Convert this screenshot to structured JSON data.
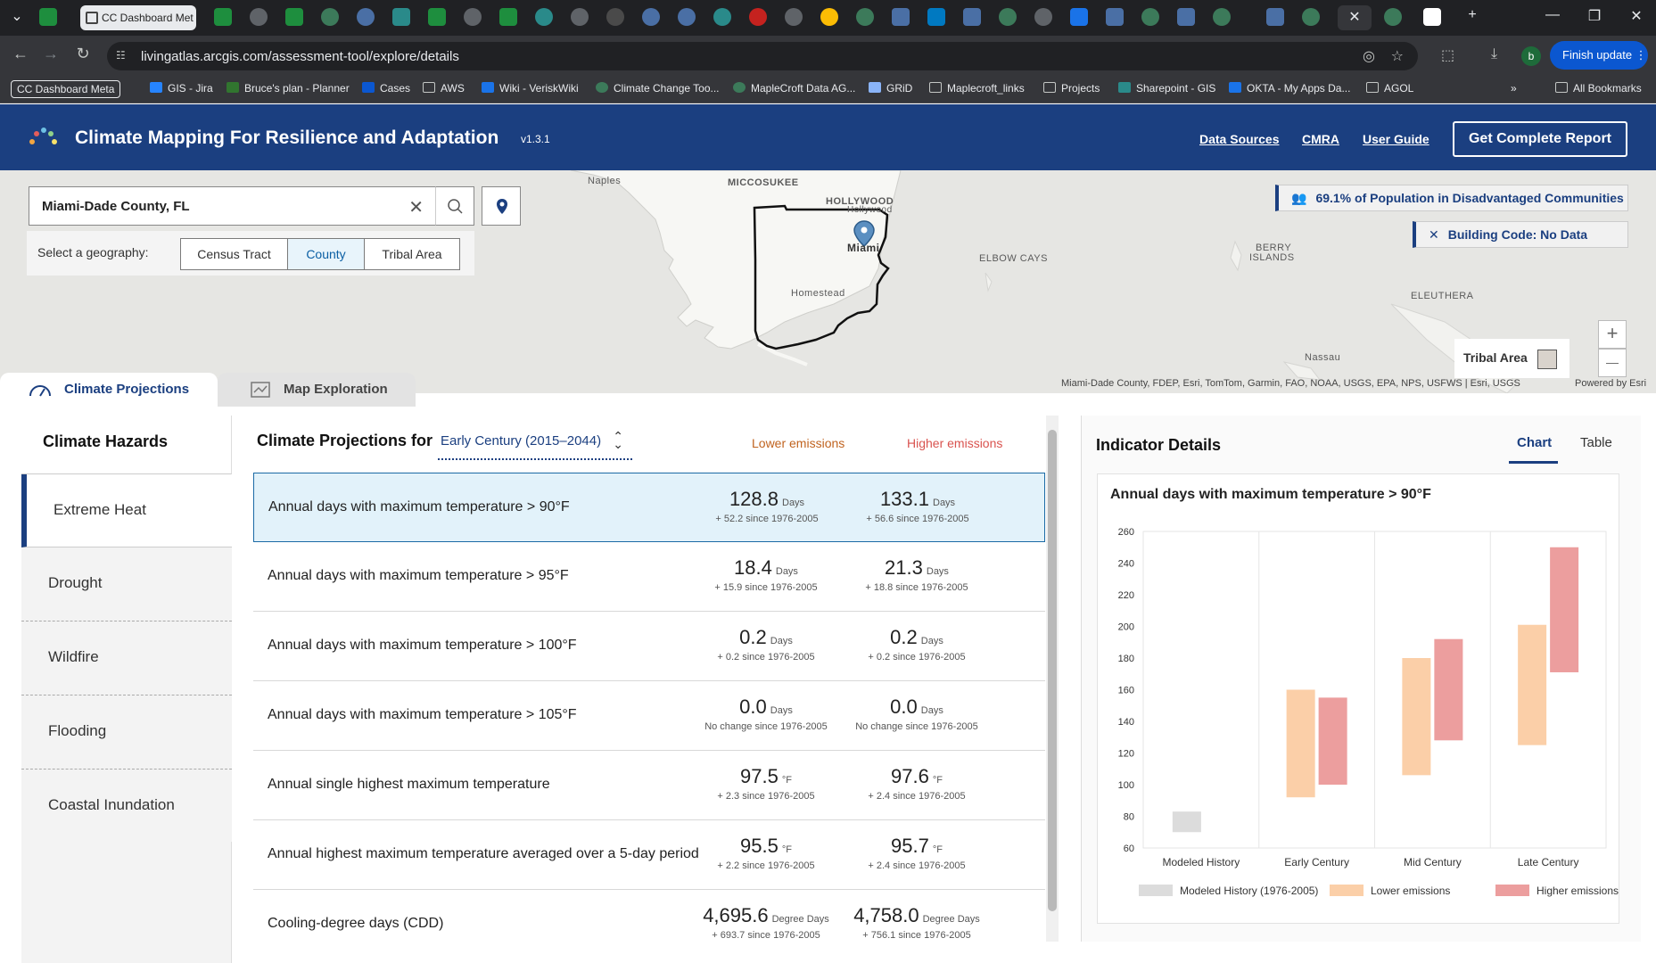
{
  "browser": {
    "active_tab_title": "CC Dashboard Met",
    "url": "livingatlas.arcgis.com/assessment-tool/explore/details",
    "finish_update": "Finish update",
    "profile_initial": "b",
    "bookmarks": [
      "CC Dashboard Meta",
      "GIS - Jira",
      "Bruce's plan - Planner",
      "Cases",
      "AWS",
      "Wiki - VeriskWiki",
      "Climate Change Too...",
      "MapleCroft Data AG...",
      "GRiD",
      "Maplecroft_links",
      "Projects",
      "Sharepoint - GIS",
      "OKTA - My Apps Da...",
      "AGOL",
      "All Bookmarks"
    ]
  },
  "header": {
    "title": "Climate Mapping For Resilience and Adaptation",
    "version": "v1.3.1",
    "links": [
      "Data Sources",
      "CMRA",
      "User Guide"
    ],
    "report_button": "Get Complete Report"
  },
  "map": {
    "search_value": "Miami-Dade County, FL",
    "geography_label": "Select a geography:",
    "geography_options": [
      "Census Tract",
      "County",
      "Tribal Area"
    ],
    "geography_selected": "County",
    "population_badge": "69.1% of Population in Disadvantaged Communities",
    "building_code_badge": "Building Code: No Data",
    "legend_label": "Tribal Area",
    "place_labels": [
      "Naples",
      "MICCOSUKEE",
      "HOLLYWOOD",
      "Hollywood",
      "Miami",
      "Homestead",
      "ELBOW CAYS",
      "BERRY",
      "ISLANDS",
      "ELEUTHERA",
      "Nassau"
    ],
    "attribution": "Miami-Dade County, FDEP, Esri, TomTom, Garmin, FAO, NOAA, USGS, EPA, NPS, USFWS | Esri, USGS",
    "powered_by": "Powered by Esri",
    "zoom_in": "+",
    "zoom_out": "—"
  },
  "tabs": [
    "Climate Projections",
    "Map Exploration"
  ],
  "hazards": {
    "heading": "Climate Hazards",
    "items": [
      "Extreme Heat",
      "Drought",
      "Wildfire",
      "Flooding",
      "Coastal Inundation"
    ],
    "selected": "Extreme Heat"
  },
  "projections": {
    "heading": "Climate Projections for",
    "period": "Early Century (2015–2044)",
    "col_lower": "Lower emissions",
    "col_higher": "Higher emissions",
    "rows": [
      {
        "label": "Annual days with maximum temperature > 90°F",
        "lower": "128.8",
        "lower_unit": "Days",
        "lower_change": "+ 52.2 since 1976-2005",
        "higher": "133.1",
        "higher_unit": "Days",
        "higher_change": "+ 56.6 since 1976-2005"
      },
      {
        "label": "Annual days with maximum temperature > 95°F",
        "lower": "18.4",
        "lower_unit": "Days",
        "lower_change": "+ 15.9 since 1976-2005",
        "higher": "21.3",
        "higher_unit": "Days",
        "higher_change": "+ 18.8 since 1976-2005"
      },
      {
        "label": "Annual days with maximum temperature > 100°F",
        "lower": "0.2",
        "lower_unit": "Days",
        "lower_change": "+ 0.2 since 1976-2005",
        "higher": "0.2",
        "higher_unit": "Days",
        "higher_change": "+ 0.2 since 1976-2005"
      },
      {
        "label": "Annual days with maximum temperature > 105°F",
        "lower": "0.0",
        "lower_unit": "Days",
        "lower_change": "No change since 1976-2005",
        "higher": "0.0",
        "higher_unit": "Days",
        "higher_change": "No change since 1976-2005"
      },
      {
        "label": "Annual single highest maximum temperature",
        "lower": "97.5",
        "lower_unit": "°F",
        "lower_change": "+ 2.3 since 1976-2005",
        "higher": "97.6",
        "higher_unit": "°F",
        "higher_change": "+ 2.4 since 1976-2005"
      },
      {
        "label": "Annual highest maximum temperature averaged over a 5-day period",
        "lower": "95.5",
        "lower_unit": "°F",
        "lower_change": "+ 2.2 since 1976-2005",
        "higher": "95.7",
        "higher_unit": "°F",
        "higher_change": "+ 2.4 since 1976-2005"
      },
      {
        "label": "Cooling-degree days (CDD)",
        "lower": "4,695.6",
        "lower_unit": "Degree Days",
        "lower_change": "+ 693.7 since 1976-2005",
        "higher": "4,758.0",
        "higher_unit": "Degree Days",
        "higher_change": "+ 756.1 since 1976-2005"
      }
    ]
  },
  "indicator": {
    "heading": "Indicator Details",
    "tabs": [
      "Chart",
      "Table"
    ],
    "selected_tab": "Chart"
  },
  "colors": {
    "brand_navy": "#1b3f80",
    "lower_emissions": "#fbcfa8",
    "higher_emissions": "#ec9e9e",
    "modeled_history": "#dcdcdc",
    "lower_header": "#c0631f",
    "higher_header": "#d9534f"
  },
  "chart_data": {
    "type": "bar",
    "title": "Annual days with maximum temperature > 90°F",
    "categories": [
      "Modeled History",
      "Early Century",
      "Mid Century",
      "Late Century"
    ],
    "ylim": [
      60,
      260
    ],
    "yticks": [
      60,
      80,
      100,
      120,
      140,
      160,
      180,
      200,
      220,
      240,
      260
    ],
    "grid": "vertical category dividers",
    "legend_position": "bottom",
    "series": [
      {
        "name": "Modeled History (1976-2005)",
        "ranges": [
          [
            70,
            83
          ],
          null,
          null,
          null
        ]
      },
      {
        "name": "Lower emissions",
        "ranges": [
          null,
          [
            92,
            160
          ],
          [
            106,
            180
          ],
          [
            125,
            201
          ]
        ]
      },
      {
        "name": "Higher emissions",
        "ranges": [
          null,
          [
            100,
            155
          ],
          [
            128,
            192
          ],
          [
            171,
            250
          ]
        ]
      }
    ]
  }
}
